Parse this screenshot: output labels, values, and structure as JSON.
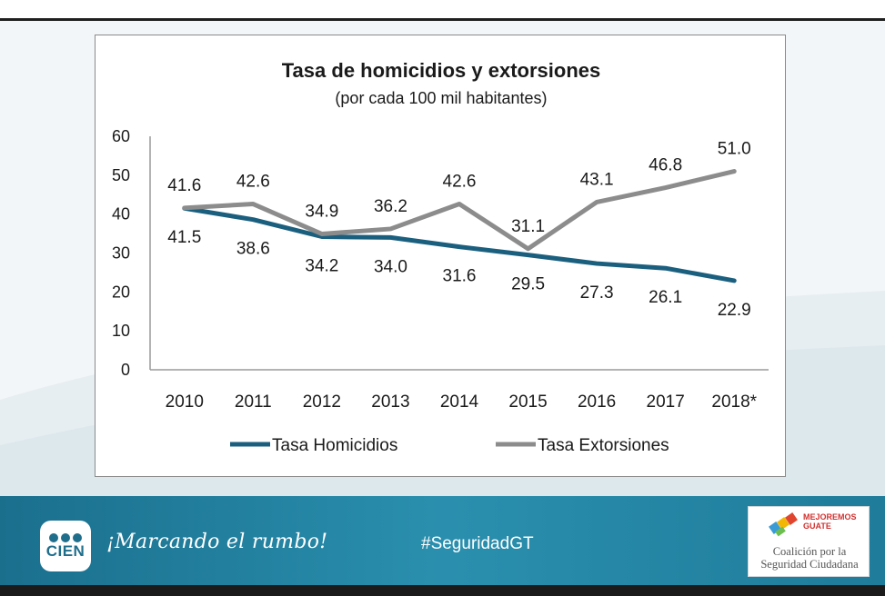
{
  "chart_data": {
    "type": "line",
    "title": "Tasa de homicidios y extorsiones",
    "subtitle": "(por cada 100 mil habitantes)",
    "categories": [
      "2010",
      "2011",
      "2012",
      "2013",
      "2014",
      "2015",
      "2016",
      "2017",
      "2018*"
    ],
    "ylim": [
      0,
      60
    ],
    "yticks": [
      "0",
      "10",
      "20",
      "30",
      "40",
      "50",
      "60"
    ],
    "xlabel": "",
    "ylabel": "",
    "grid": false,
    "legend_position": "bottom",
    "series": [
      {
        "name": "Tasa Homicidios",
        "color": "#1b5f7f",
        "values": [
          41.5,
          38.6,
          34.2,
          34.0,
          31.6,
          29.5,
          27.3,
          26.1,
          22.9
        ],
        "labels": [
          "41.5",
          "38.6",
          "34.2",
          "34.0",
          "31.6",
          "29.5",
          "27.3",
          "26.1",
          "22.9"
        ]
      },
      {
        "name": "Tasa Extorsiones",
        "color": "#8c8c8c",
        "values": [
          41.6,
          42.6,
          34.9,
          36.2,
          42.6,
          31.1,
          43.1,
          46.8,
          51.0
        ],
        "labels": [
          "41.6",
          "42.6",
          "34.9",
          "36.2",
          "42.6",
          "31.1",
          "43.1",
          "46.8",
          "51.0"
        ]
      }
    ],
    "axis_color": "#9a9a9a"
  },
  "footer": {
    "logo_text": "CIEN",
    "slogan": "¡Marcando el rumbo!",
    "hashtag": "#SeguridadGT",
    "partner_line1": "MEJOREMOS",
    "partner_line2": "GUATE",
    "coalition_line1": "Coalición por la",
    "coalition_line2": "Seguridad Ciudadana"
  }
}
